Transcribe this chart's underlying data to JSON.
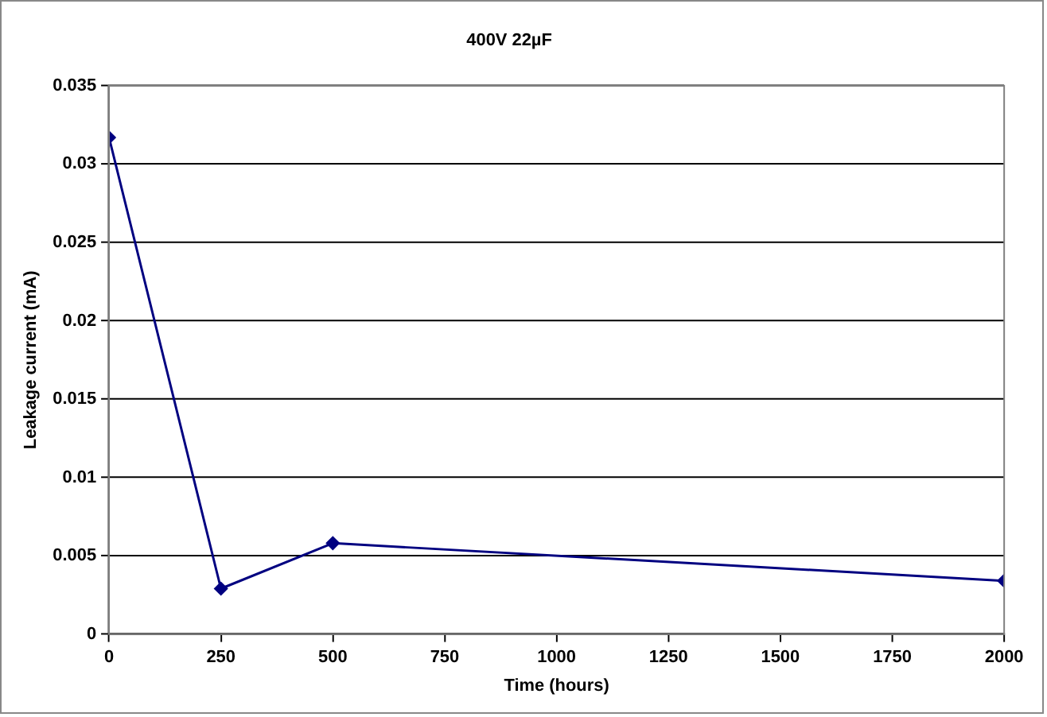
{
  "chart_data": {
    "type": "line",
    "title": "400V 22µF",
    "xlabel": "Time (hours)",
    "ylabel": "Leakage current (mA)",
    "x": [
      0,
      250,
      500,
      2000
    ],
    "series": [
      {
        "color": "#000080",
        "values": [
          0.0317,
          0.0029,
          0.0058,
          0.0034
        ]
      }
    ],
    "xlim": [
      0,
      2000
    ],
    "xticks": [
      0,
      250,
      500,
      750,
      1000,
      1250,
      1500,
      1750,
      2000
    ],
    "ylim": [
      0,
      0.035
    ],
    "yticks": [
      0,
      0.005,
      0.01,
      0.015,
      0.02,
      0.025,
      0.03,
      0.035
    ],
    "grid": "y",
    "legend": false,
    "marker": "diamond",
    "line_style": "solid"
  }
}
